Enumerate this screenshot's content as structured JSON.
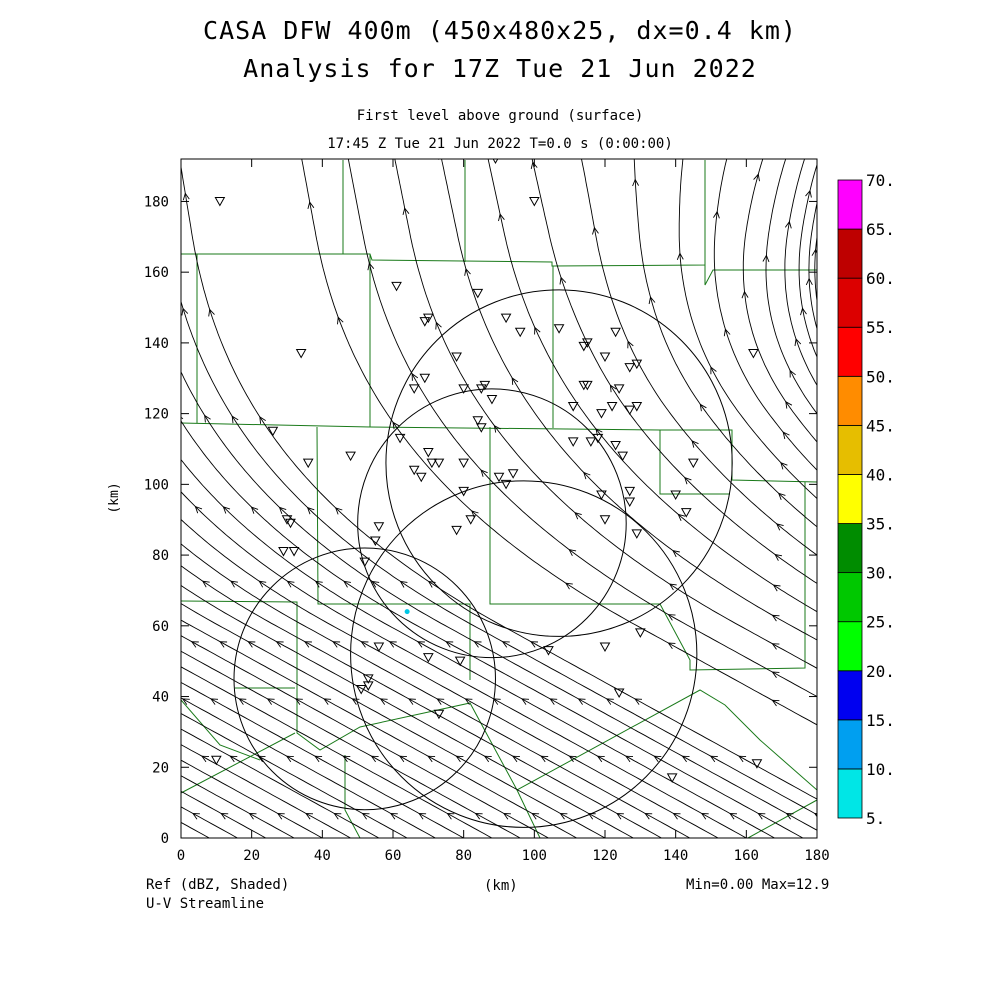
{
  "header": {
    "title_line1": "CASA DFW 400m (450x480x25, dx=0.4 km)",
    "title_line2": "Analysis for 17Z Tue 21 Jun 2022",
    "subtitle_line1": "First level above ground (surface)",
    "subtitle_line2": "17:45 Z Tue 21 Jun 2022   T=0.0 s (0:00:00)"
  },
  "footer": {
    "left_line1": "Ref (dBZ, Shaded)",
    "left_line2": "U-V Streamline",
    "xunit": "(km)",
    "minmax": "Min=0.00 Max=12.9"
  },
  "colors": {
    "boundary": "#1a7a1a",
    "streamline": "#000000",
    "echo": "#00c8e6"
  },
  "chart_data": {
    "type": "streamline",
    "xlabel": "(km)",
    "ylabel": "(km)",
    "xlim": [
      0,
      180
    ],
    "ylim": [
      0,
      192
    ],
    "xticks": [
      0,
      20,
      40,
      60,
      80,
      100,
      120,
      140,
      160,
      180
    ],
    "yticks": [
      0,
      20,
      40,
      60,
      80,
      100,
      120,
      140,
      160,
      180
    ],
    "field": "Ref (dBZ, Shaded)",
    "overlay": "U-V Streamline",
    "min": 0.0,
    "max": 12.9,
    "radar_rings": [
      {
        "cx": 107,
        "cy": 106,
        "r": 49
      },
      {
        "cx": 88,
        "cy": 89,
        "r": 38
      },
      {
        "cx": 97,
        "cy": 52,
        "r": 49
      },
      {
        "cx": 52,
        "cy": 45,
        "r": 37
      }
    ],
    "stations": [
      [
        11,
        180
      ],
      [
        100,
        180
      ],
      [
        89,
        192
      ],
      [
        61,
        156
      ],
      [
        84,
        154
      ],
      [
        70,
        147
      ],
      [
        69,
        146
      ],
      [
        92,
        147
      ],
      [
        96,
        143
      ],
      [
        107,
        144
      ],
      [
        115,
        140
      ],
      [
        123,
        143
      ],
      [
        34,
        137
      ],
      [
        78,
        136
      ],
      [
        114,
        139
      ],
      [
        120,
        136
      ],
      [
        127,
        133
      ],
      [
        129,
        134
      ],
      [
        69,
        130
      ],
      [
        66,
        127
      ],
      [
        80,
        127
      ],
      [
        85,
        127
      ],
      [
        88,
        124
      ],
      [
        86,
        128
      ],
      [
        114,
        128
      ],
      [
        115,
        128
      ],
      [
        124,
        127
      ],
      [
        111,
        122
      ],
      [
        119,
        120
      ],
      [
        122,
        122
      ],
      [
        129,
        122
      ],
      [
        127,
        121
      ],
      [
        26,
        115
      ],
      [
        84,
        118
      ],
      [
        85,
        116
      ],
      [
        116,
        112
      ],
      [
        118,
        113
      ],
      [
        111,
        112
      ],
      [
        123,
        111
      ],
      [
        125,
        108
      ],
      [
        62,
        113
      ],
      [
        48,
        108
      ],
      [
        70,
        109
      ],
      [
        66,
        104
      ],
      [
        68,
        102
      ],
      [
        71,
        106
      ],
      [
        73,
        106
      ],
      [
        80,
        106
      ],
      [
        36,
        106
      ],
      [
        90,
        102
      ],
      [
        92,
        100
      ],
      [
        94,
        103
      ],
      [
        80,
        98
      ],
      [
        119,
        97
      ],
      [
        127,
        98
      ],
      [
        127,
        95
      ],
      [
        140,
        97
      ],
      [
        145,
        106
      ],
      [
        143,
        92
      ],
      [
        30,
        90
      ],
      [
        31,
        89
      ],
      [
        56,
        88
      ],
      [
        78,
        87
      ],
      [
        82,
        90
      ],
      [
        120,
        90
      ],
      [
        129,
        86
      ],
      [
        29,
        81
      ],
      [
        32,
        81
      ],
      [
        55,
        84
      ],
      [
        52,
        78
      ],
      [
        56,
        54
      ],
      [
        70,
        51
      ],
      [
        79,
        50
      ],
      [
        104,
        53
      ],
      [
        120,
        54
      ],
      [
        130,
        58
      ],
      [
        51,
        42
      ],
      [
        53,
        45
      ],
      [
        53,
        43
      ],
      [
        73,
        35
      ],
      [
        124,
        41
      ],
      [
        10,
        22
      ],
      [
        139,
        17
      ],
      [
        163,
        21
      ],
      [
        162,
        137
      ]
    ],
    "colorbar": {
      "levels": [
        5,
        10,
        15,
        20,
        25,
        30,
        35,
        40,
        45,
        50,
        55,
        60,
        65,
        70
      ],
      "labels": [
        "5.",
        "10.",
        "15.",
        "20.",
        "25.",
        "30.",
        "35.",
        "40.",
        "45.",
        "50.",
        "55.",
        "60.",
        "65.",
        "70."
      ],
      "colors": [
        "#00e6e6",
        "#009ff0",
        "#0000f0",
        "#00ff00",
        "#00c800",
        "#008c00",
        "#ffff00",
        "#e6be00",
        "#ff8c00",
        "#ff0000",
        "#dc0000",
        "#be0000",
        "#ff00ff"
      ]
    }
  }
}
